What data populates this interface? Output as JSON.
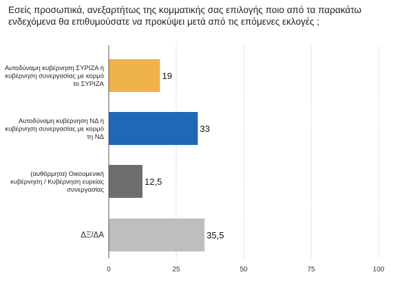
{
  "chart_data": {
    "type": "bar",
    "orientation": "horizontal",
    "title": "Εσείς προσωπικά, ανεξαρτήτως της κομματικής σας επιλογής ποιο από τα παρακάτω ενδεχόμενα θα επιθυμούσατε να προκύψει μετά από τις επόμενες εκλογές ;",
    "categories": [
      [
        "Αυτοδύναμη κυβέρνηση ΣΥΡΙΖΑ ή",
        "κυβέρνηση συνεργασίας με κορμό",
        "το ΣΥΡΙΖΑ"
      ],
      [
        "Αυτοδύναμη κυβέρνηση ΝΔ ή",
        "κυβέρνηση συνεργασίας με κορμό",
        "τη ΝΔ"
      ],
      [
        "(αυθόρμητα) Οικουμενική",
        "κυβέρνηση / Κυβέρνηση ευρείας",
        "συνεργασίας"
      ],
      [
        "ΔΞ/ΔΑ"
      ]
    ],
    "values": [
      19,
      33,
      12.5,
      35.5
    ],
    "value_labels": [
      "19",
      "33",
      "12,5",
      "35,5"
    ],
    "bar_colors": [
      "#F0B34C",
      "#2167B8",
      "#6D6E6C",
      "#BDBFBE"
    ],
    "xlim": [
      0,
      100
    ],
    "xticks": [
      0,
      25,
      50,
      75,
      100
    ],
    "grid": "vertical dashed"
  }
}
